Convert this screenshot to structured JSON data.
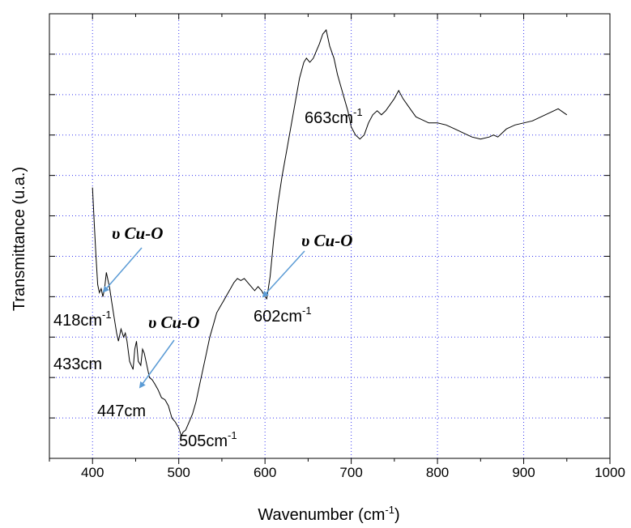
{
  "chart_data": {
    "type": "line",
    "xlabel": "Wavenumber (cm",
    "xlabel_sup": "-1",
    "xlabel_suffix": ")",
    "ylabel": "Transmittance (u.a.)",
    "xlim": [
      350,
      1000
    ],
    "ylim": [
      0,
      11
    ],
    "x_ticks": [
      400,
      500,
      600,
      700,
      800,
      900,
      1000
    ],
    "grid": true,
    "series": [
      {
        "x": [
          400,
          402,
          404,
          406,
          408,
          410,
          412,
          414,
          416,
          418,
          420,
          422,
          425,
          428,
          430,
          433,
          436,
          438,
          440,
          443,
          445,
          447,
          449,
          451,
          453,
          456,
          458,
          460,
          463,
          466,
          469,
          472,
          476,
          480,
          484,
          488,
          492,
          496,
          500,
          503,
          505,
          508,
          512,
          516,
          520,
          524,
          528,
          532,
          536,
          540,
          544,
          548,
          552,
          556,
          560,
          564,
          568,
          572,
          576,
          580,
          584,
          588,
          592,
          596,
          600,
          602,
          606,
          610,
          615,
          620,
          625,
          630,
          635,
          640,
          645,
          648,
          652,
          656,
          660,
          663,
          667,
          671,
          675,
          680,
          684,
          688,
          692,
          696,
          700,
          705,
          710,
          715,
          720,
          725,
          730,
          735,
          740,
          745,
          750,
          755,
          760,
          765,
          770,
          775,
          780,
          790,
          800,
          810,
          820,
          830,
          840,
          850,
          860,
          865,
          870,
          875,
          880,
          890,
          900,
          910,
          920,
          930,
          940,
          950
        ],
        "y": [
          6.7,
          5.8,
          5.0,
          4.3,
          4.1,
          4.2,
          4.0,
          4.2,
          4.6,
          4.4,
          4.2,
          3.9,
          3.5,
          3.1,
          2.9,
          3.2,
          3.0,
          3.1,
          2.9,
          2.4,
          2.3,
          2.2,
          2.7,
          2.9,
          2.4,
          2.3,
          2.7,
          2.6,
          2.3,
          2.0,
          1.95,
          1.85,
          1.7,
          1.5,
          1.45,
          1.3,
          1.0,
          0.9,
          0.75,
          0.55,
          0.65,
          0.7,
          0.9,
          1.1,
          1.4,
          1.8,
          2.2,
          2.6,
          3.0,
          3.3,
          3.6,
          3.75,
          3.9,
          4.05,
          4.2,
          4.35,
          4.45,
          4.4,
          4.45,
          4.35,
          4.25,
          4.15,
          4.25,
          4.15,
          4.0,
          3.95,
          4.5,
          5.4,
          6.3,
          7.0,
          7.6,
          8.2,
          8.8,
          9.4,
          9.8,
          9.9,
          9.8,
          9.9,
          10.1,
          10.25,
          10.5,
          10.6,
          10.2,
          9.9,
          9.5,
          9.2,
          8.9,
          8.6,
          8.2,
          8.0,
          7.9,
          8.0,
          8.3,
          8.5,
          8.6,
          8.5,
          8.6,
          8.75,
          8.9,
          9.1,
          8.9,
          8.75,
          8.6,
          8.45,
          8.4,
          8.3,
          8.3,
          8.25,
          8.15,
          8.05,
          7.95,
          7.9,
          7.95,
          8.0,
          7.95,
          8.05,
          8.15,
          8.25,
          8.3,
          8.35,
          8.45,
          8.55,
          8.65,
          8.5
        ]
      }
    ],
    "peak_labels": [
      {
        "text": "418cm",
        "sup": "-1"
      },
      {
        "text": "433cm",
        "sup": ""
      },
      {
        "text": "447cm",
        "sup": ""
      },
      {
        "text": "505cm",
        "sup": "-1"
      },
      {
        "text": "602cm",
        "sup": "-1"
      },
      {
        "text": "663cm",
        "sup": "-1"
      }
    ],
    "annotations": [
      {
        "text": "υ Cu-O"
      },
      {
        "text": "υ Cu-O"
      },
      {
        "text": "υ Cu-O"
      }
    ],
    "colors": {
      "line": "#000000",
      "arrow": "#5b9bd5",
      "grid": "#3a3af0"
    }
  }
}
